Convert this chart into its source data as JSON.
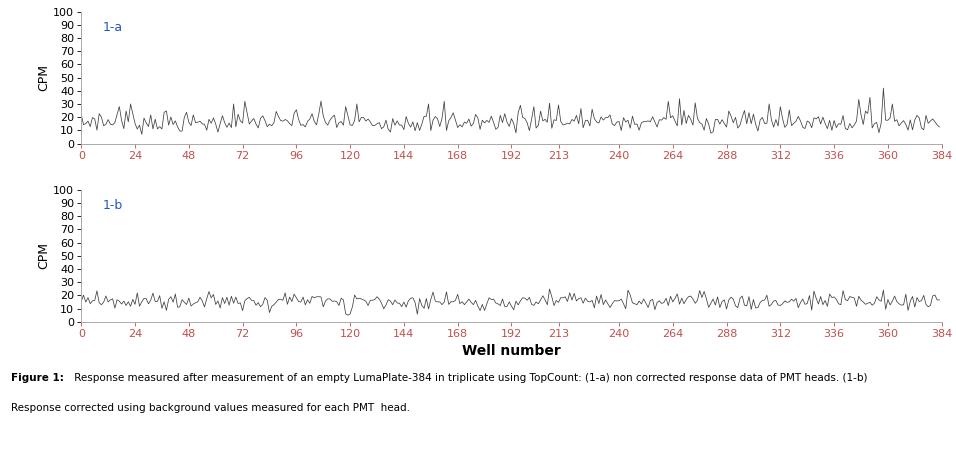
{
  "n_points": 384,
  "xlim": [
    0,
    384
  ],
  "ylim": [
    0,
    100
  ],
  "yticks": [
    0,
    10,
    20,
    30,
    40,
    50,
    60,
    70,
    80,
    90,
    100
  ],
  "xticks": [
    0,
    24,
    48,
    72,
    96,
    120,
    144,
    168,
    192,
    213,
    240,
    264,
    288,
    312,
    336,
    360,
    384
  ],
  "xlabel": "Well number",
  "ylabel": "CPM",
  "label_a": "1-a",
  "label_b": "1-b",
  "line_color": "#3f3f3f",
  "line_width": 0.55,
  "label_color": "#2255bb",
  "xtick_color": "#c0504d",
  "ytick_color": "#000000",
  "spine_color": "#aaaaaa",
  "caption_line1": "Figure 1: Response measured after measurement of an empty LumaPlate-384 in triplicate using TopCount: (1-a) non corrected response data of PMT heads. (1-b)",
  "caption_line2": "Response corrected using background values measured for each PMT  head.",
  "seed_a": 7,
  "seed_b": 99
}
